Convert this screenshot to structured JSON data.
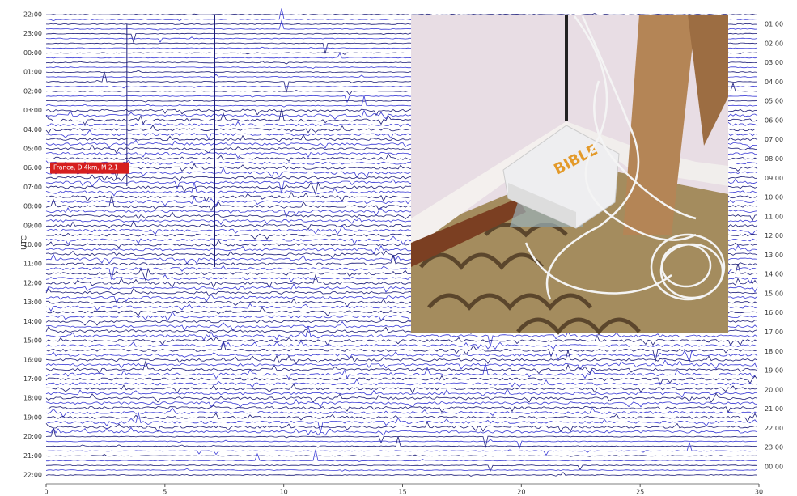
{
  "chart_data": {
    "type": "helicorder",
    "ylabel": "UTC",
    "left_labels": [
      "22:00",
      "23:00",
      "00:00",
      "01:00",
      "02:00",
      "03:00",
      "04:00",
      "05:00",
      "06:00",
      "07:00",
      "08:00",
      "09:00",
      "10:00",
      "11:00",
      "12:00",
      "13:00",
      "14:00",
      "15:00",
      "16:00",
      "17:00",
      "18:00",
      "19:00",
      "20:00",
      "21:00",
      "22:00"
    ],
    "right_labels": [
      "01:00",
      "02:00",
      "03:00",
      "04:00",
      "05:00",
      "06:00",
      "07:00",
      "08:00",
      "09:00",
      "10:00",
      "11:00",
      "12:00",
      "13:00",
      "14:00",
      "15:00",
      "16:00",
      "17:00",
      "18:00",
      "19:00",
      "20:00",
      "21:00",
      "22:00",
      "23:00",
      "00:00"
    ],
    "xlim": [
      0,
      30
    ],
    "xticks": [
      0,
      5,
      10,
      15,
      20,
      25,
      30
    ],
    "annotation": "France, D 4km, M 2.1",
    "trace_colors": [
      "#1c1c78",
      "#3b3bd6"
    ],
    "photo_text": "BIBLE"
  }
}
